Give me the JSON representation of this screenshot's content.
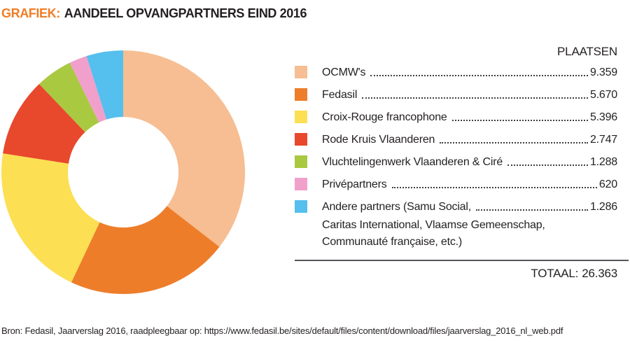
{
  "title": {
    "prefix": "GRAFIEK:",
    "text": "AANDEEL OPVANGPARTNERS EIND 2016"
  },
  "legend": {
    "header": "PLAATSEN",
    "total_label": "TOTAAL:",
    "total_display": "26.363"
  },
  "chart_data": {
    "type": "pie",
    "subtype": "donut",
    "title": "AANDEEL OPVANGPARTNERS EIND 2016",
    "unit_label": "PLAATSEN",
    "start_angle_deg": 0,
    "direction": "clockwise",
    "inner_radius_ratio": 0.45,
    "total_value_displayed": "26.363",
    "segments": [
      {
        "label": "OCMW's",
        "value": 9359,
        "display_value": "9.359",
        "color": "#F6BE92"
      },
      {
        "label": "Fedasil",
        "value": 5670,
        "display_value": "5.670",
        "color": "#EE7D2A"
      },
      {
        "label": "Croix-Rouge francophone",
        "value": 5396,
        "display_value": "5.396",
        "color": "#FCDF52"
      },
      {
        "label": "Rode Kruis Vlaanderen",
        "value": 2747,
        "display_value": "2.747",
        "color": "#E8482C"
      },
      {
        "label": "Vluchtelingenwerk Vlaanderen & Ciré",
        "value": 1288,
        "display_value": "1.288",
        "color": "#A9C940"
      },
      {
        "label": "Privépartners",
        "value": 620,
        "display_value": "620",
        "color": "#F0A0CB"
      },
      {
        "label": "Andere partners (Samu Social,",
        "value": 1286,
        "display_value": "1.286",
        "color": "#55BFEE",
        "extra_lines": "Caritas International, Vlaamse Gemeenschap,\nCommunauté française, etc.)"
      }
    ]
  },
  "source": "Bron: Fedasil, Jaarverslag 2016, raadpleegbaar op: https://www.fedasil.be/sites/default/files/content/download/files/jaarverslag_2016_nl_web.pdf",
  "colors": {
    "accent_orange": "#F07D26",
    "text": "#231F20",
    "divider": "#55565B"
  }
}
